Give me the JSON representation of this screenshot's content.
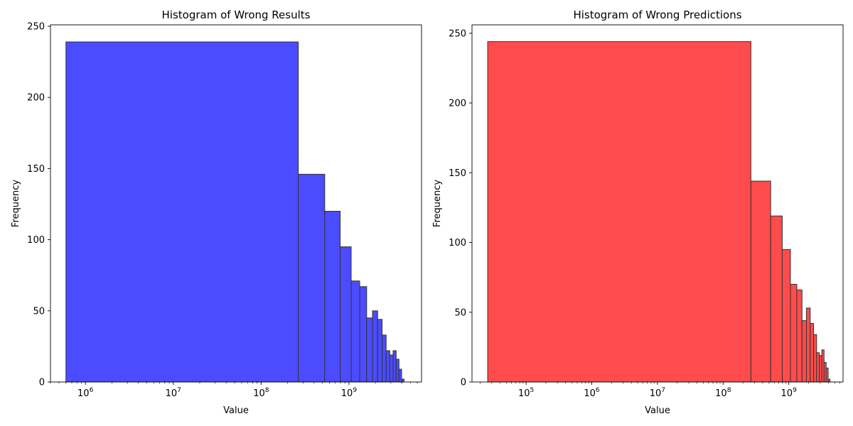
{
  "chart_data": [
    {
      "type": "bar",
      "title": "Histogram of Wrong Results",
      "xlabel": "Value",
      "ylabel": "Frequency",
      "x_scale": "log",
      "xlim": [
        400000,
        6700000000
      ],
      "ylim": [
        0,
        251
      ],
      "x_ticks": [
        1000000,
        10000000,
        100000000,
        1000000000
      ],
      "x_tick_exponents": [
        "6",
        "7",
        "8",
        "9"
      ],
      "y_ticks": [
        0,
        50,
        100,
        150,
        200,
        250
      ],
      "color": "#4b4bff",
      "edge_color": "#333333",
      "bins": [
        {
          "x0": 600000,
          "x1": 265000000,
          "count": 239
        },
        {
          "x0": 265000000,
          "x1": 530000000,
          "count": 146
        },
        {
          "x0": 530000000,
          "x1": 795000000,
          "count": 120
        },
        {
          "x0": 795000000,
          "x1": 1060000000,
          "count": 95
        },
        {
          "x0": 1060000000,
          "x1": 1325000000,
          "count": 71
        },
        {
          "x0": 1325000000,
          "x1": 1590000000,
          "count": 67
        },
        {
          "x0": 1590000000,
          "x1": 1855000000,
          "count": 45
        },
        {
          "x0": 1855000000,
          "x1": 2120000000,
          "count": 50
        },
        {
          "x0": 2120000000,
          "x1": 2385000000,
          "count": 44
        },
        {
          "x0": 2385000000,
          "x1": 2650000000,
          "count": 33
        },
        {
          "x0": 2650000000,
          "x1": 2915000000,
          "count": 22
        },
        {
          "x0": 2915000000,
          "x1": 3180000000,
          "count": 19
        },
        {
          "x0": 3180000000,
          "x1": 3445000000,
          "count": 22
        },
        {
          "x0": 3445000000,
          "x1": 3710000000,
          "count": 16
        },
        {
          "x0": 3710000000,
          "x1": 3975000000,
          "count": 9
        },
        {
          "x0": 3975000000,
          "x1": 4240000000,
          "count": 2
        }
      ]
    },
    {
      "type": "bar",
      "title": "Histogram of Wrong Predictions",
      "xlabel": "Value",
      "ylabel": "Frequency",
      "x_scale": "log",
      "xlim": [
        15000,
        6700000000
      ],
      "ylim": [
        0,
        256
      ],
      "x_ticks": [
        100000,
        1000000,
        10000000,
        100000000,
        1000000000
      ],
      "x_tick_exponents": [
        "5",
        "6",
        "7",
        "8",
        "9"
      ],
      "y_ticks": [
        0,
        50,
        100,
        150,
        200,
        250
      ],
      "color": "#ff4b4b",
      "edge_color": "#333333",
      "bins": [
        {
          "x0": 26000,
          "x1": 265000000,
          "count": 244
        },
        {
          "x0": 265000000,
          "x1": 530000000,
          "count": 144
        },
        {
          "x0": 530000000,
          "x1": 795000000,
          "count": 119
        },
        {
          "x0": 795000000,
          "x1": 1060000000,
          "count": 95
        },
        {
          "x0": 1060000000,
          "x1": 1325000000,
          "count": 70
        },
        {
          "x0": 1325000000,
          "x1": 1590000000,
          "count": 66
        },
        {
          "x0": 1590000000,
          "x1": 1855000000,
          "count": 44
        },
        {
          "x0": 1855000000,
          "x1": 2120000000,
          "count": 53
        },
        {
          "x0": 2120000000,
          "x1": 2385000000,
          "count": 42
        },
        {
          "x0": 2385000000,
          "x1": 2650000000,
          "count": 34
        },
        {
          "x0": 2650000000,
          "x1": 2915000000,
          "count": 21
        },
        {
          "x0": 2915000000,
          "x1": 3180000000,
          "count": 19
        },
        {
          "x0": 3180000000,
          "x1": 3445000000,
          "count": 23
        },
        {
          "x0": 3445000000,
          "x1": 3710000000,
          "count": 14
        },
        {
          "x0": 3710000000,
          "x1": 3975000000,
          "count": 10
        },
        {
          "x0": 3975000000,
          "x1": 4240000000,
          "count": 2
        }
      ]
    }
  ]
}
